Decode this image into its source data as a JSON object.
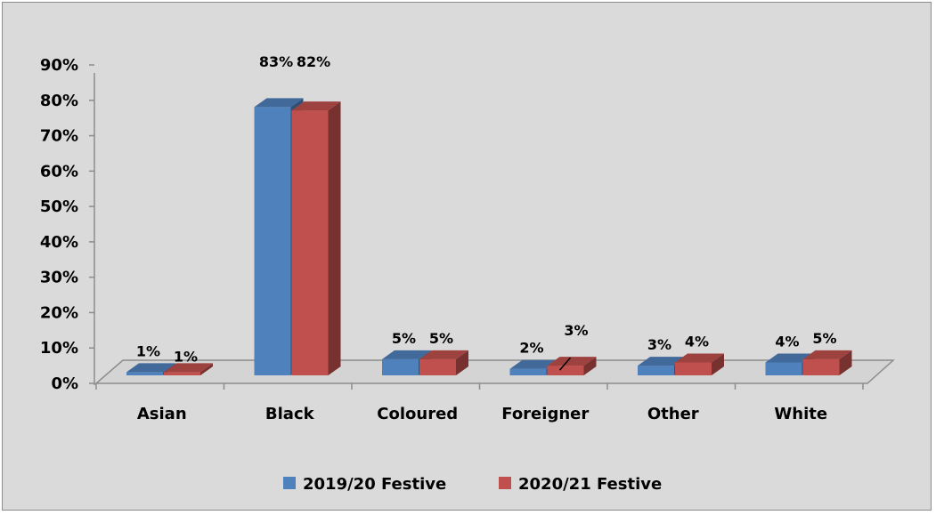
{
  "chart_data": {
    "type": "bar",
    "variant": "3d-clustered-column",
    "categories": [
      "Asian",
      "Black",
      "Coloured",
      "Foreigner",
      "Other",
      "White"
    ],
    "series": [
      {
        "name": "2019/20 Festive",
        "values": [
          1,
          83,
          5,
          2,
          3,
          4
        ],
        "labels": [
          "1%",
          "83%",
          "5%",
          "2%",
          "3%",
          "4%"
        ],
        "color": "#4f81bd"
      },
      {
        "name": "2020/21 Festive",
        "values": [
          1,
          82,
          5,
          3,
          4,
          5
        ],
        "labels": [
          "1%",
          "82%",
          "5%",
          "3%",
          "4%",
          "5%"
        ],
        "color": "#c0504d"
      }
    ],
    "y_ticks": [
      "0%",
      "10%",
      "20%",
      "30%",
      "40%",
      "50%",
      "60%",
      "70%",
      "80%",
      "90%"
    ],
    "ylim": [
      0,
      90
    ],
    "grid": false,
    "legend_position": "bottom"
  }
}
